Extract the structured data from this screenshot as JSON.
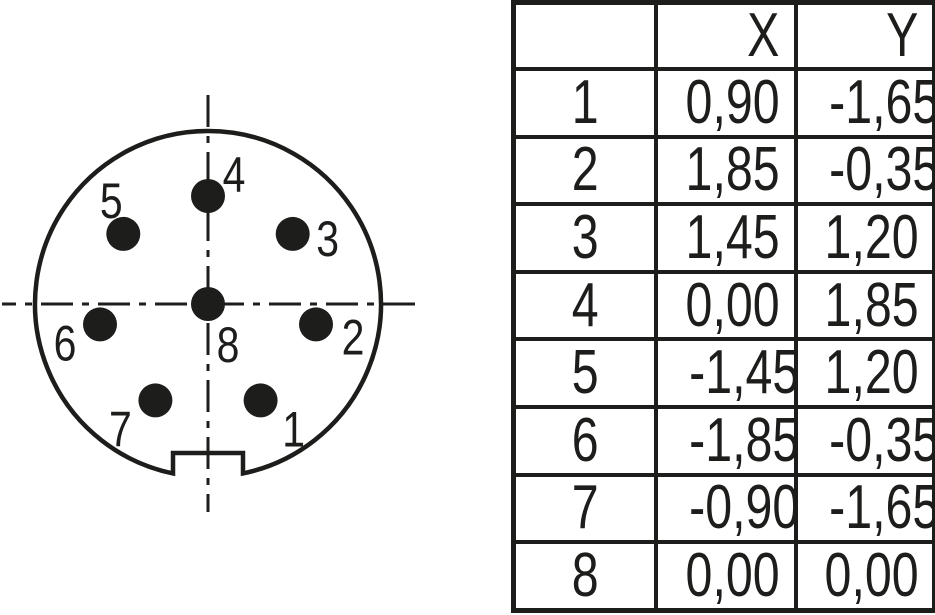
{
  "colors": {
    "ink": "#1d1d1b",
    "background": "#ffffff"
  },
  "connector": {
    "description_name": "8-pin-male-connector-front-view",
    "pins": [
      {
        "num": "1",
        "x_mm": 0.9,
        "y_mm": -1.65
      },
      {
        "num": "2",
        "x_mm": 1.85,
        "y_mm": -0.35
      },
      {
        "num": "3",
        "x_mm": 1.45,
        "y_mm": 1.2
      },
      {
        "num": "4",
        "x_mm": 0.0,
        "y_mm": 1.85
      },
      {
        "num": "5",
        "x_mm": -1.45,
        "y_mm": 1.2
      },
      {
        "num": "6",
        "x_mm": -1.85,
        "y_mm": -0.35
      },
      {
        "num": "7",
        "x_mm": -0.9,
        "y_mm": -1.65
      },
      {
        "num": "8",
        "x_mm": 0.0,
        "y_mm": 0.0
      }
    ]
  },
  "table": {
    "headers": [
      "",
      "X",
      "Y"
    ],
    "rows": [
      [
        "1",
        "0,90",
        "-1,65"
      ],
      [
        "2",
        "1,85",
        "-0,35"
      ],
      [
        "3",
        "1,45",
        "1,20"
      ],
      [
        "4",
        "0,00",
        "1,85"
      ],
      [
        "5",
        "-1,45",
        "1,20"
      ],
      [
        "6",
        "-1,85",
        "-0,35"
      ],
      [
        "7",
        "-0,90",
        "-1,65"
      ],
      [
        "8",
        "0,00",
        "0,00"
      ]
    ]
  }
}
